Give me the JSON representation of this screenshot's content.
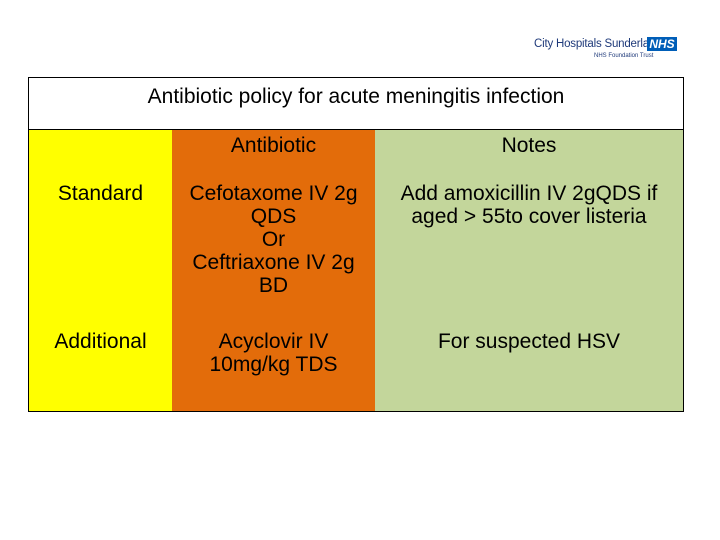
{
  "logo": {
    "name": "City Hospitals Sunderland",
    "badge": "NHS",
    "sub": "NHS Foundation Trust"
  },
  "table": {
    "title": "Antibiotic policy for acute meningitis infection",
    "headers": {
      "col1": "",
      "col2": "Antibiotic",
      "col3": "Notes"
    },
    "rows": [
      {
        "label": "Standard",
        "antibiotic": "Cefotaxome IV 2g\nQDS\nOr\nCeftriaxone IV 2g\nBD",
        "notes": "Add amoxicillin IV 2gQDS if\naged > 55to cover listeria"
      },
      {
        "label": "Additional",
        "antibiotic": "Acyclovir IV\n10mg/kg TDS",
        "notes": "For suspected HSV"
      }
    ]
  },
  "colors": {
    "yellow": "#ffff00",
    "orange": "#e36c0a",
    "green": "#c3d69b",
    "nhs_blue": "#005eb8"
  }
}
